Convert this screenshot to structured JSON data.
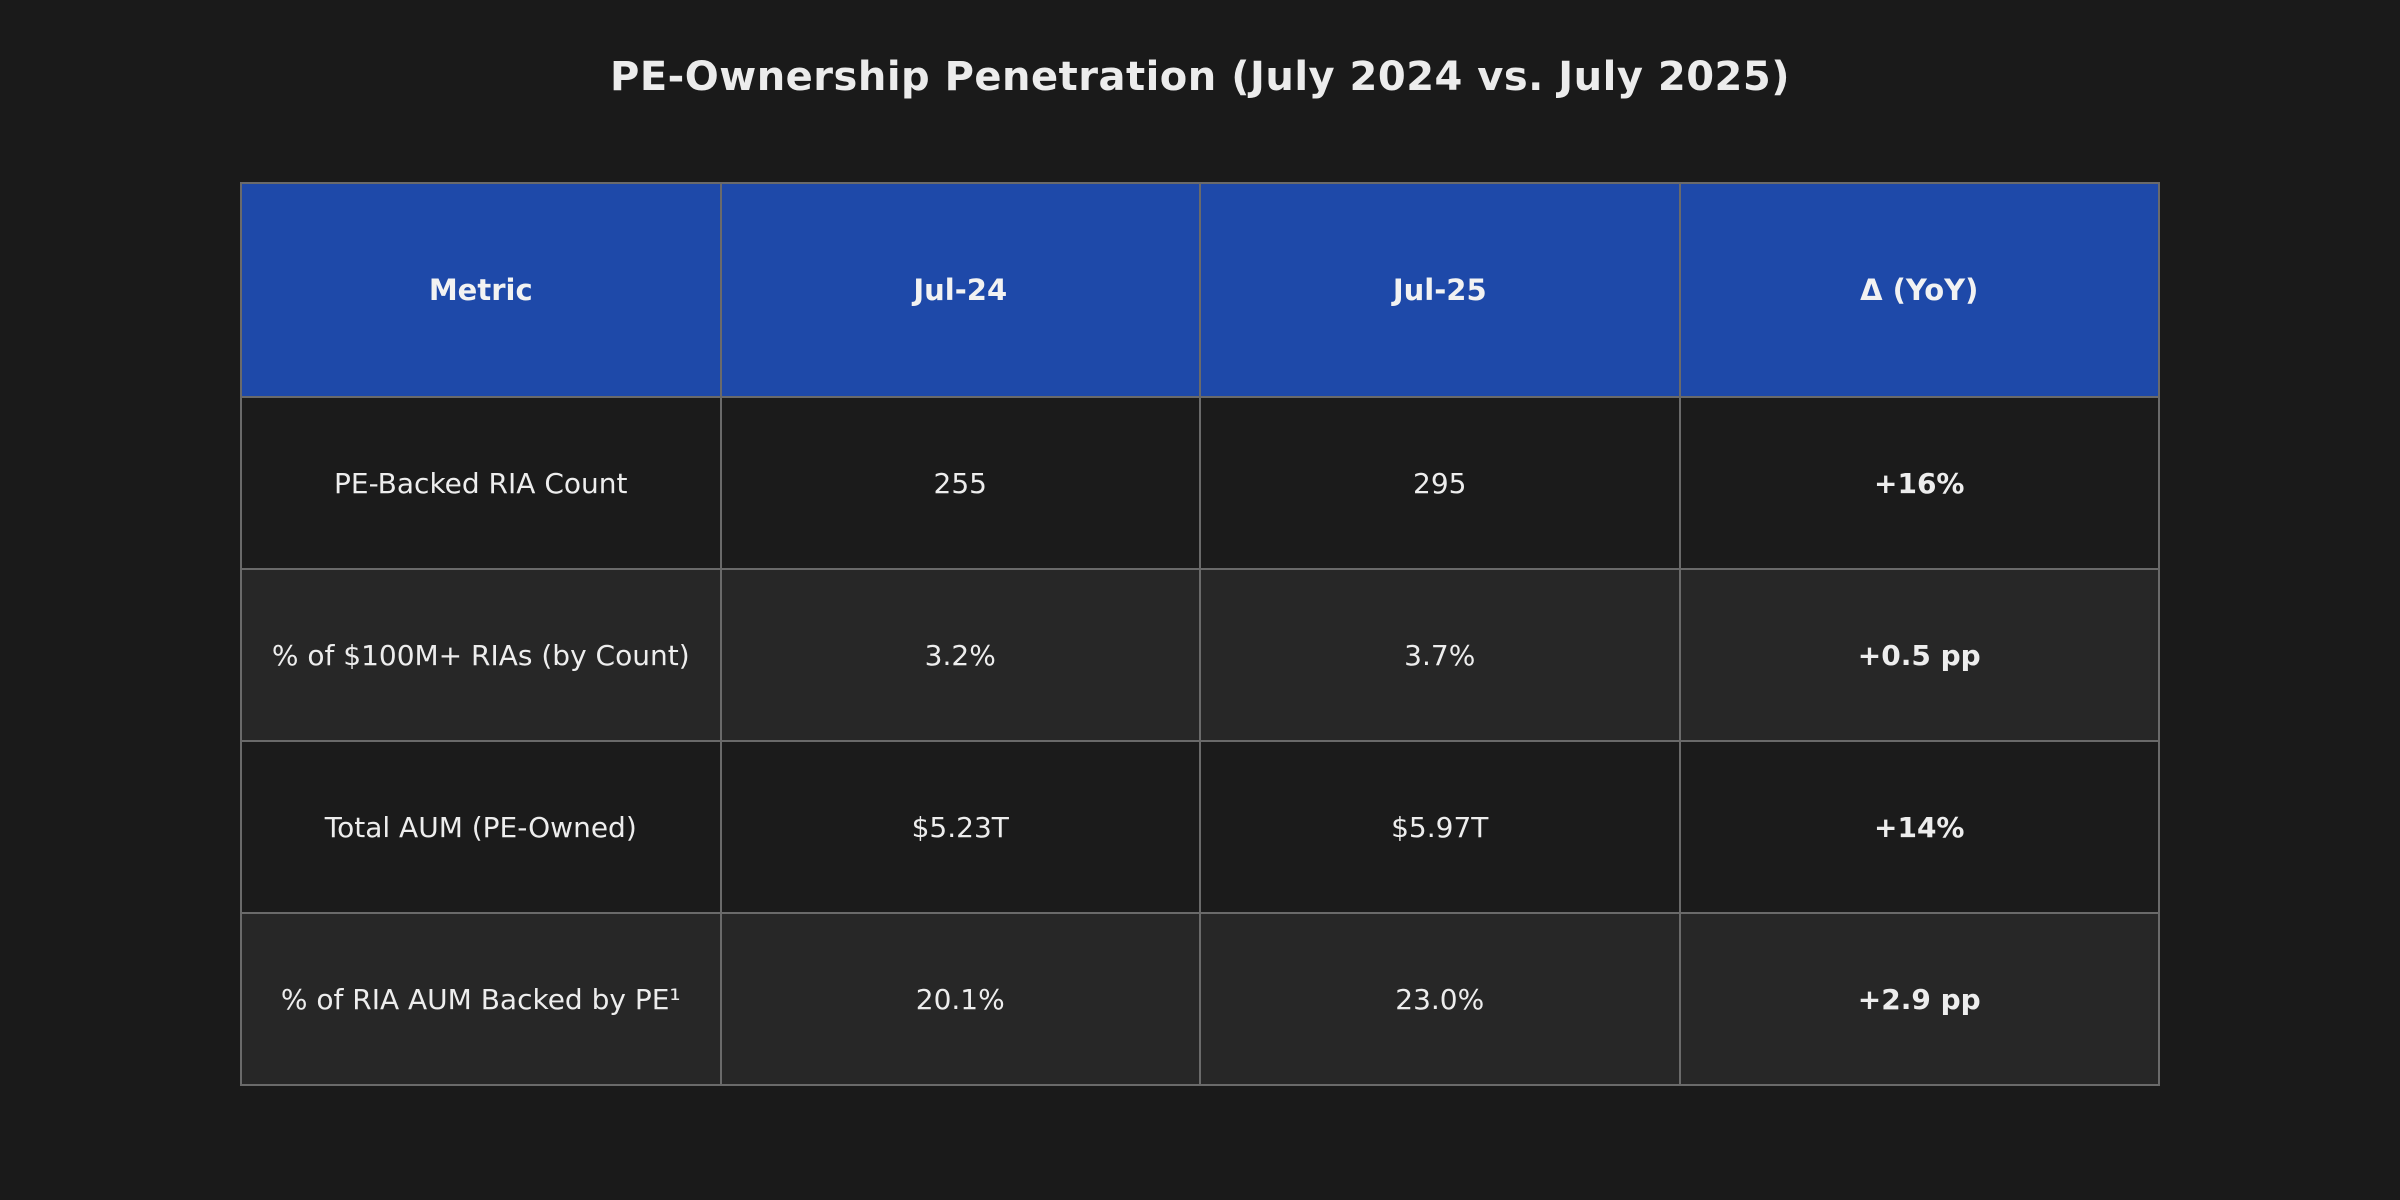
{
  "title": "PE-Ownership Penetration (July 2024 vs. July 2025)",
  "colors": {
    "page_bg": "#1a1a1a",
    "header_bg": "#1e49a9",
    "header_text": "#f2f2f2",
    "row_odd_bg": "#1b1b1b",
    "row_even_bg": "#272727",
    "cell_text": "#ededed",
    "delta_green": "#2aa35c",
    "border": "#6a6a6a"
  },
  "chart_data": {
    "type": "table",
    "title": "PE-Ownership Penetration (July 2024 vs. July 2025)",
    "columns": [
      "Metric",
      "Jul-24",
      "Jul-25",
      "Δ (YoY)"
    ],
    "rows": [
      [
        "PE-Backed RIA Count",
        "255",
        "295",
        "+16%"
      ],
      [
        "% of $100M+ RIAs (by Count)",
        "3.2%",
        "3.7%",
        "+0.5 pp"
      ],
      [
        "Total AUM (PE-Owned)",
        "$5.23T",
        "$5.97T",
        "+14%"
      ],
      [
        "% of RIA AUM Backed by PE¹",
        "20.1%",
        "23.0%",
        "+2.9 pp"
      ]
    ],
    "layout": {
      "delta_column_index": 3,
      "delta_values_color": "#2aa35c",
      "header_fill": "#1e49a9",
      "alternating_row_shading": true,
      "grid": true
    }
  }
}
